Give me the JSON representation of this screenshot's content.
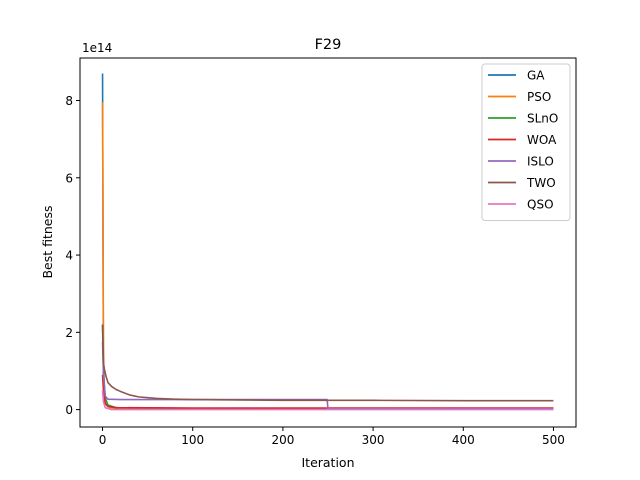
{
  "chart_data": {
    "type": "line",
    "title": "F29",
    "xlabel": "Iteration",
    "ylabel": "Best fitness",
    "y_offset_label": "1e14",
    "xlim": [
      -25,
      525
    ],
    "ylim": [
      -0.45,
      9.1
    ],
    "x_ticks": [
      0,
      100,
      200,
      300,
      400,
      500
    ],
    "x_tick_labels": [
      "0",
      "100",
      "200",
      "300",
      "400",
      "500"
    ],
    "y_ticks": [
      0,
      2,
      4,
      6,
      8
    ],
    "y_tick_labels": [
      "0",
      "2",
      "4",
      "6",
      "8"
    ],
    "grid": false,
    "legend_position": "top-right",
    "series": [
      {
        "name": "GA",
        "color": "#1f77b4",
        "points": [
          [
            0,
            8.7
          ],
          [
            1,
            0.6
          ],
          [
            2,
            0.25
          ],
          [
            5,
            0.12
          ],
          [
            10,
            0.06
          ],
          [
            30,
            0.03
          ],
          [
            100,
            0.02
          ],
          [
            500,
            0.02
          ]
        ]
      },
      {
        "name": "PSO",
        "color": "#ff7f0e",
        "points": [
          [
            0,
            7.95
          ],
          [
            1,
            1.6
          ],
          [
            2,
            0.4
          ],
          [
            4,
            0.15
          ],
          [
            8,
            0.05
          ],
          [
            20,
            0.02
          ],
          [
            100,
            0.01
          ],
          [
            500,
            0.01
          ]
        ]
      },
      {
        "name": "SLnO",
        "color": "#2ca02c",
        "points": [
          [
            0,
            2.2
          ],
          [
            1,
            1.0
          ],
          [
            3,
            0.3
          ],
          [
            6,
            0.12
          ],
          [
            15,
            0.05
          ],
          [
            100,
            0.03
          ],
          [
            500,
            0.03
          ]
        ]
      },
      {
        "name": "WOA",
        "color": "#d62728",
        "points": [
          [
            0,
            0.9
          ],
          [
            1,
            0.5
          ],
          [
            3,
            0.15
          ],
          [
            6,
            0.08
          ],
          [
            15,
            0.05
          ],
          [
            100,
            0.04
          ],
          [
            500,
            0.04
          ]
        ]
      },
      {
        "name": "ISLO",
        "color": "#9467bd",
        "points": [
          [
            0,
            1.75
          ],
          [
            1,
            0.9
          ],
          [
            3,
            0.35
          ],
          [
            6,
            0.27
          ],
          [
            20,
            0.26
          ],
          [
            100,
            0.26
          ],
          [
            249,
            0.26
          ],
          [
            250,
            0.02
          ],
          [
            500,
            0.02
          ]
        ]
      },
      {
        "name": "TWO",
        "color": "#8c564b",
        "points": [
          [
            0,
            2.2
          ],
          [
            1,
            1.2
          ],
          [
            2,
            1.05
          ],
          [
            4,
            0.85
          ],
          [
            6,
            0.7
          ],
          [
            10,
            0.6
          ],
          [
            15,
            0.52
          ],
          [
            20,
            0.47
          ],
          [
            30,
            0.38
          ],
          [
            40,
            0.33
          ],
          [
            60,
            0.29
          ],
          [
            80,
            0.27
          ],
          [
            100,
            0.26
          ],
          [
            150,
            0.25
          ],
          [
            200,
            0.24
          ],
          [
            300,
            0.24
          ],
          [
            400,
            0.23
          ],
          [
            500,
            0.23
          ]
        ]
      },
      {
        "name": "QSO",
        "color": "#e377c2",
        "points": [
          [
            0,
            0.5
          ],
          [
            1,
            0.2
          ],
          [
            3,
            0.05
          ],
          [
            10,
            0.0
          ],
          [
            500,
            0.0
          ]
        ]
      }
    ]
  }
}
